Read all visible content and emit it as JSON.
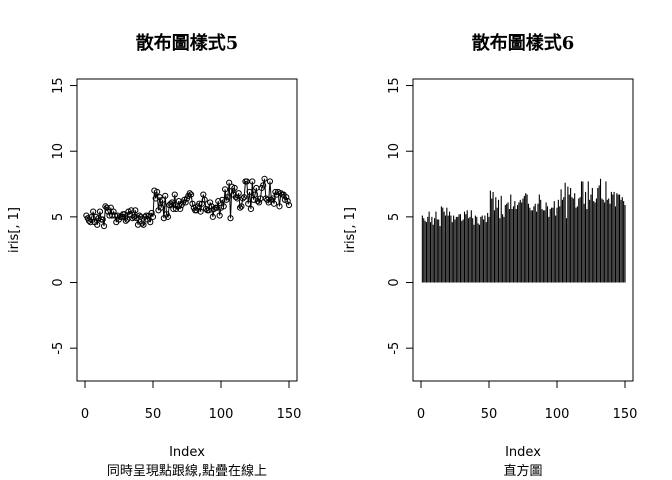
{
  "chart_data": [
    {
      "type": "line",
      "style": "points-and-lines (type o)",
      "title": "散布圖樣式5",
      "xlabel": "Index",
      "subtitle": "同時呈現點跟線,點疊在線上",
      "ylabel": "iris[, 1]",
      "xlim": [
        0,
        150
      ],
      "ylim": [
        -7.5,
        15.5
      ],
      "xticks": [
        0,
        50,
        100,
        150
      ],
      "yticks": [
        -5,
        0,
        5,
        10,
        15
      ],
      "series": [
        {
          "x": [
            1,
            2,
            3,
            4,
            5,
            6,
            7,
            8,
            9,
            10,
            11,
            12,
            13,
            14,
            15,
            16,
            17,
            18,
            19,
            20,
            21,
            22,
            23,
            24,
            25,
            26,
            27,
            28,
            29,
            30,
            31,
            32,
            33,
            34,
            35,
            36,
            37,
            38,
            39,
            40,
            41,
            42,
            43,
            44,
            45,
            46,
            47,
            48,
            49,
            50,
            51,
            52,
            53,
            54,
            55,
            56,
            57,
            58,
            59,
            60,
            61,
            62,
            63,
            64,
            65,
            66,
            67,
            68,
            69,
            70,
            71,
            72,
            73,
            74,
            75,
            76,
            77,
            78,
            79,
            80,
            81,
            82,
            83,
            84,
            85,
            86,
            87,
            88,
            89,
            90,
            91,
            92,
            93,
            94,
            95,
            96,
            97,
            98,
            99,
            100,
            101,
            102,
            103,
            104,
            105,
            106,
            107,
            108,
            109,
            110,
            111,
            112,
            113,
            114,
            115,
            116,
            117,
            118,
            119,
            120,
            121,
            122,
            123,
            124,
            125,
            126,
            127,
            128,
            129,
            130,
            131,
            132,
            133,
            134,
            135,
            136,
            137,
            138,
            139,
            140,
            141,
            142,
            143,
            144,
            145,
            146,
            147,
            148,
            149,
            150
          ],
          "y": [
            5.1,
            4.9,
            4.7,
            4.6,
            5.0,
            5.4,
            4.6,
            5.0,
            4.4,
            4.9,
            5.4,
            4.8,
            4.8,
            4.3,
            5.8,
            5.7,
            5.4,
            5.1,
            5.7,
            5.1,
            5.4,
            5.1,
            4.6,
            5.1,
            4.8,
            5.0,
            5.0,
            5.2,
            5.2,
            4.7,
            4.8,
            5.4,
            5.2,
            5.5,
            4.9,
            5.0,
            5.5,
            4.9,
            4.4,
            5.1,
            5.0,
            4.5,
            4.4,
            5.0,
            5.1,
            4.8,
            5.1,
            4.6,
            5.3,
            5.0,
            7.0,
            6.4,
            6.9,
            5.5,
            6.5,
            5.7,
            6.3,
            4.9,
            6.6,
            5.2,
            5.0,
            5.9,
            6.0,
            6.1,
            5.6,
            6.7,
            5.6,
            5.8,
            6.2,
            5.6,
            5.9,
            6.1,
            6.3,
            6.1,
            6.4,
            6.6,
            6.8,
            6.7,
            6.0,
            5.7,
            5.5,
            5.5,
            5.8,
            6.0,
            5.4,
            6.0,
            6.7,
            6.3,
            5.6,
            5.5,
            5.5,
            6.1,
            5.8,
            5.0,
            5.6,
            5.7,
            5.7,
            6.2,
            5.1,
            5.7,
            6.3,
            5.8,
            7.1,
            6.3,
            6.5,
            7.6,
            4.9,
            7.3,
            6.7,
            7.2,
            6.5,
            6.4,
            6.8,
            5.7,
            5.8,
            6.4,
            6.5,
            7.7,
            7.7,
            6.0,
            6.9,
            5.6,
            7.7,
            6.3,
            6.7,
            7.2,
            6.2,
            6.1,
            6.4,
            7.2,
            7.4,
            7.9,
            6.4,
            6.3,
            6.1,
            7.7,
            6.3,
            6.4,
            6.0,
            6.9,
            6.7,
            6.9,
            5.8,
            6.8,
            6.7,
            6.7,
            6.3,
            6.5,
            6.2,
            5.9
          ]
        }
      ]
    },
    {
      "type": "bar",
      "style": "histogram-like vertical lines (type h)",
      "title": "散布圖樣式6",
      "xlabel": "Index",
      "subtitle": "直方圖",
      "ylabel": "iris[, 1]",
      "xlim": [
        0,
        150
      ],
      "ylim": [
        -7.5,
        15.5
      ],
      "xticks": [
        0,
        50,
        100,
        150
      ],
      "yticks": [
        -5,
        0,
        5,
        10,
        15
      ],
      "series": [
        {
          "x": [
            1,
            2,
            3,
            4,
            5,
            6,
            7,
            8,
            9,
            10,
            11,
            12,
            13,
            14,
            15,
            16,
            17,
            18,
            19,
            20,
            21,
            22,
            23,
            24,
            25,
            26,
            27,
            28,
            29,
            30,
            31,
            32,
            33,
            34,
            35,
            36,
            37,
            38,
            39,
            40,
            41,
            42,
            43,
            44,
            45,
            46,
            47,
            48,
            49,
            50,
            51,
            52,
            53,
            54,
            55,
            56,
            57,
            58,
            59,
            60,
            61,
            62,
            63,
            64,
            65,
            66,
            67,
            68,
            69,
            70,
            71,
            72,
            73,
            74,
            75,
            76,
            77,
            78,
            79,
            80,
            81,
            82,
            83,
            84,
            85,
            86,
            87,
            88,
            89,
            90,
            91,
            92,
            93,
            94,
            95,
            96,
            97,
            98,
            99,
            100,
            101,
            102,
            103,
            104,
            105,
            106,
            107,
            108,
            109,
            110,
            111,
            112,
            113,
            114,
            115,
            116,
            117,
            118,
            119,
            120,
            121,
            122,
            123,
            124,
            125,
            126,
            127,
            128,
            129,
            130,
            131,
            132,
            133,
            134,
            135,
            136,
            137,
            138,
            139,
            140,
            141,
            142,
            143,
            144,
            145,
            146,
            147,
            148,
            149,
            150
          ],
          "y": [
            5.1,
            4.9,
            4.7,
            4.6,
            5.0,
            5.4,
            4.6,
            5.0,
            4.4,
            4.9,
            5.4,
            4.8,
            4.8,
            4.3,
            5.8,
            5.7,
            5.4,
            5.1,
            5.7,
            5.1,
            5.4,
            5.1,
            4.6,
            5.1,
            4.8,
            5.0,
            5.0,
            5.2,
            5.2,
            4.7,
            4.8,
            5.4,
            5.2,
            5.5,
            4.9,
            5.0,
            5.5,
            4.9,
            4.4,
            5.1,
            5.0,
            4.5,
            4.4,
            5.0,
            5.1,
            4.8,
            5.1,
            4.6,
            5.3,
            5.0,
            7.0,
            6.4,
            6.9,
            5.5,
            6.5,
            5.7,
            6.3,
            4.9,
            6.6,
            5.2,
            5.0,
            5.9,
            6.0,
            6.1,
            5.6,
            6.7,
            5.6,
            5.8,
            6.2,
            5.6,
            5.9,
            6.1,
            6.3,
            6.1,
            6.4,
            6.6,
            6.8,
            6.7,
            6.0,
            5.7,
            5.5,
            5.5,
            5.8,
            6.0,
            5.4,
            6.0,
            6.7,
            6.3,
            5.6,
            5.5,
            5.5,
            6.1,
            5.8,
            5.0,
            5.6,
            5.7,
            5.7,
            6.2,
            5.1,
            5.7,
            6.3,
            5.8,
            7.1,
            6.3,
            6.5,
            7.6,
            4.9,
            7.3,
            6.7,
            7.2,
            6.5,
            6.4,
            6.8,
            5.7,
            5.8,
            6.4,
            6.5,
            7.7,
            7.7,
            6.0,
            6.9,
            5.6,
            7.7,
            6.3,
            6.7,
            7.2,
            6.2,
            6.1,
            6.4,
            7.2,
            7.4,
            7.9,
            6.4,
            6.3,
            6.1,
            7.7,
            6.3,
            6.4,
            6.0,
            6.9,
            6.7,
            6.9,
            5.8,
            6.8,
            6.7,
            6.7,
            6.3,
            6.5,
            6.2,
            5.9
          ]
        }
      ]
    }
  ]
}
